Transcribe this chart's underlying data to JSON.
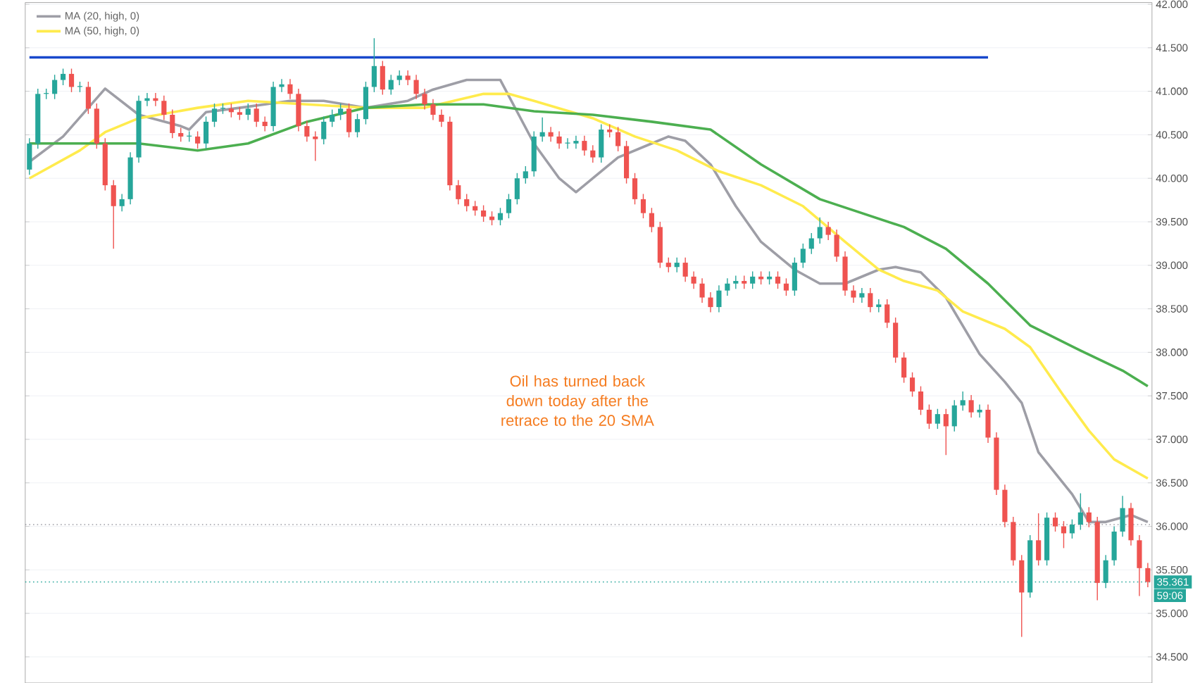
{
  "chart_data": {
    "type": "candlestick",
    "categories": [
      null,
      null,
      null,
      null,
      null,
      null,
      null,
      null,
      null,
      null,
      null,
      null,
      null,
      null,
      null,
      null,
      null,
      null,
      null,
      null,
      null,
      null,
      null,
      null,
      null,
      null,
      null,
      null,
      null,
      null,
      null,
      null,
      null,
      null,
      null,
      null,
      null,
      null,
      null,
      null,
      null,
      null,
      null,
      null,
      null,
      null,
      null,
      null,
      null,
      null,
      null,
      null,
      null,
      null,
      null,
      null,
      null,
      null,
      null,
      null,
      null,
      null,
      null,
      null,
      null,
      null,
      null,
      null,
      null,
      null,
      null,
      null,
      null,
      null,
      null,
      null,
      null,
      null,
      null,
      null,
      null,
      null,
      null,
      null,
      null,
      null,
      null,
      null,
      null,
      null,
      null,
      null,
      null,
      null,
      null,
      null,
      null,
      null,
      null,
      null,
      null,
      null,
      null,
      null,
      null,
      null,
      null,
      null,
      null,
      null,
      null,
      null,
      null,
      null,
      null,
      null,
      null,
      null,
      null,
      null,
      null,
      null,
      null,
      null,
      null,
      null,
      null,
      null,
      null,
      null,
      null,
      null,
      null,
      null
    ],
    "ohlc": [
      [
        40.1,
        40.46,
        40.04,
        40.4
      ],
      [
        40.4,
        41.03,
        40.34,
        40.97
      ],
      [
        40.97,
        41.03,
        40.91,
        40.97
      ],
      [
        40.97,
        41.19,
        40.91,
        41.13
      ],
      [
        41.13,
        41.26,
        41.07,
        41.2
      ],
      [
        41.2,
        41.26,
        40.99,
        41.05
      ],
      [
        41.05,
        41.11,
        40.99,
        41.05
      ],
      [
        41.05,
        41.11,
        40.74,
        40.8
      ],
      [
        40.8,
        40.86,
        40.34,
        40.4
      ],
      [
        40.4,
        40.46,
        39.86,
        39.92
      ],
      [
        39.92,
        39.98,
        39.19,
        39.68
      ],
      [
        39.68,
        39.82,
        39.62,
        39.76
      ],
      [
        39.76,
        40.3,
        39.7,
        40.24
      ],
      [
        40.24,
        40.95,
        40.18,
        40.89
      ],
      [
        40.89,
        40.98,
        40.83,
        40.92
      ],
      [
        40.92,
        40.98,
        40.83,
        40.89
      ],
      [
        40.89,
        40.95,
        40.67,
        40.73
      ],
      [
        40.73,
        40.79,
        40.46,
        40.52
      ],
      [
        40.52,
        40.58,
        40.42,
        40.48
      ],
      [
        40.48,
        40.54,
        40.42,
        40.48
      ],
      [
        40.48,
        40.54,
        40.34,
        40.4
      ],
      [
        40.4,
        40.71,
        40.34,
        40.65
      ],
      [
        40.65,
        40.86,
        40.59,
        40.8
      ],
      [
        40.8,
        40.86,
        40.74,
        40.8
      ],
      [
        40.8,
        40.86,
        40.7,
        40.76
      ],
      [
        40.76,
        40.82,
        40.67,
        40.73
      ],
      [
        40.73,
        40.86,
        40.67,
        40.8
      ],
      [
        40.8,
        40.86,
        40.59,
        40.65
      ],
      [
        40.65,
        40.71,
        40.54,
        40.6
      ],
      [
        40.6,
        41.11,
        40.54,
        41.05
      ],
      [
        41.05,
        41.14,
        40.99,
        41.08
      ],
      [
        41.08,
        41.14,
        40.91,
        40.97
      ],
      [
        40.97,
        41.03,
        40.54,
        40.6
      ],
      [
        40.6,
        40.66,
        40.42,
        40.48
      ],
      [
        40.48,
        40.54,
        40.2,
        40.45
      ],
      [
        40.45,
        40.71,
        40.39,
        40.65
      ],
      [
        40.65,
        40.79,
        40.59,
        40.73
      ],
      [
        40.73,
        40.86,
        40.67,
        40.8
      ],
      [
        40.8,
        40.86,
        40.47,
        40.53
      ],
      [
        40.53,
        40.74,
        40.47,
        40.68
      ],
      [
        40.68,
        41.11,
        40.62,
        41.05
      ],
      [
        41.05,
        41.61,
        40.99,
        41.29
      ],
      [
        41.29,
        41.35,
        40.96,
        41.02
      ],
      [
        41.02,
        41.19,
        40.96,
        41.13
      ],
      [
        41.13,
        41.24,
        41.07,
        41.18
      ],
      [
        41.18,
        41.24,
        41.07,
        41.13
      ],
      [
        41.13,
        41.19,
        40.91,
        40.97
      ],
      [
        40.97,
        41.03,
        40.79,
        40.85
      ],
      [
        40.85,
        40.91,
        40.67,
        40.73
      ],
      [
        40.73,
        40.79,
        40.59,
        40.65
      ],
      [
        40.65,
        40.71,
        39.86,
        39.92
      ],
      [
        39.92,
        39.98,
        39.7,
        39.76
      ],
      [
        39.76,
        39.82,
        39.62,
        39.68
      ],
      [
        39.68,
        39.74,
        39.57,
        39.63
      ],
      [
        39.63,
        39.69,
        39.5,
        39.56
      ],
      [
        39.56,
        39.62,
        39.46,
        39.52
      ],
      [
        39.52,
        39.66,
        39.46,
        39.6
      ],
      [
        39.6,
        39.82,
        39.54,
        39.76
      ],
      [
        39.76,
        40.06,
        39.7,
        40.0
      ],
      [
        40.0,
        40.14,
        39.94,
        40.08
      ],
      [
        40.08,
        40.54,
        40.02,
        40.48
      ],
      [
        40.48,
        40.7,
        40.42,
        40.53
      ],
      [
        40.53,
        40.59,
        40.42,
        40.48
      ],
      [
        40.48,
        40.54,
        40.34,
        40.4
      ],
      [
        40.4,
        40.46,
        40.34,
        40.4
      ],
      [
        40.4,
        40.49,
        40.34,
        40.43
      ],
      [
        40.43,
        40.49,
        40.26,
        40.32
      ],
      [
        40.32,
        40.38,
        40.18,
        40.24
      ],
      [
        40.24,
        40.62,
        40.18,
        40.56
      ],
      [
        40.56,
        40.62,
        40.47,
        40.53
      ],
      [
        40.53,
        40.59,
        40.31,
        40.37
      ],
      [
        40.37,
        40.43,
        39.94,
        40.0
      ],
      [
        40.0,
        40.06,
        39.7,
        39.76
      ],
      [
        39.76,
        39.82,
        39.54,
        39.6
      ],
      [
        39.6,
        39.66,
        39.38,
        39.44
      ],
      [
        39.44,
        39.5,
        38.97,
        39.03
      ],
      [
        39.03,
        39.09,
        38.92,
        38.98
      ],
      [
        38.98,
        39.09,
        38.92,
        39.03
      ],
      [
        39.03,
        39.09,
        38.81,
        38.87
      ],
      [
        38.87,
        38.93,
        38.73,
        38.79
      ],
      [
        38.79,
        38.85,
        38.57,
        38.63
      ],
      [
        38.63,
        38.69,
        38.46,
        38.52
      ],
      [
        38.52,
        38.77,
        38.46,
        38.71
      ],
      [
        38.71,
        38.85,
        38.65,
        38.79
      ],
      [
        38.79,
        38.88,
        38.73,
        38.82
      ],
      [
        38.82,
        38.88,
        38.73,
        38.79
      ],
      [
        38.79,
        38.93,
        38.73,
        38.87
      ],
      [
        38.87,
        38.93,
        38.78,
        38.84
      ],
      [
        38.84,
        38.93,
        38.78,
        38.87
      ],
      [
        38.87,
        38.93,
        38.73,
        38.79
      ],
      [
        38.79,
        38.85,
        38.65,
        38.71
      ],
      [
        38.71,
        39.09,
        38.65,
        39.03
      ],
      [
        39.03,
        39.25,
        38.97,
        39.19
      ],
      [
        39.19,
        39.37,
        39.13,
        39.31
      ],
      [
        39.31,
        39.55,
        39.25,
        39.44
      ],
      [
        39.44,
        39.5,
        39.29,
        39.35
      ],
      [
        39.35,
        39.41,
        39.04,
        39.1
      ],
      [
        39.1,
        39.16,
        38.65,
        38.71
      ],
      [
        38.71,
        38.77,
        38.57,
        38.63
      ],
      [
        38.63,
        38.74,
        38.57,
        38.68
      ],
      [
        38.68,
        38.74,
        38.46,
        38.52
      ],
      [
        38.52,
        38.61,
        38.46,
        38.55
      ],
      [
        38.55,
        38.61,
        38.28,
        38.34
      ],
      [
        38.34,
        38.4,
        37.88,
        37.94
      ],
      [
        37.94,
        38.0,
        37.65,
        37.71
      ],
      [
        37.71,
        37.77,
        37.49,
        37.55
      ],
      [
        37.55,
        37.61,
        37.28,
        37.34
      ],
      [
        37.34,
        37.4,
        37.12,
        37.18
      ],
      [
        37.18,
        37.35,
        37.12,
        37.29
      ],
      [
        37.29,
        37.35,
        36.82,
        37.15
      ],
      [
        37.15,
        37.45,
        37.09,
        37.39
      ],
      [
        37.39,
        37.55,
        37.33,
        37.45
      ],
      [
        37.45,
        37.51,
        37.25,
        37.31
      ],
      [
        37.31,
        37.4,
        37.25,
        37.34
      ],
      [
        37.34,
        37.4,
        36.96,
        37.02
      ],
      [
        37.02,
        37.08,
        36.36,
        36.42
      ],
      [
        36.42,
        36.48,
        35.99,
        36.05
      ],
      [
        36.05,
        36.11,
        35.55,
        35.61
      ],
      [
        35.61,
        35.67,
        34.73,
        35.24
      ],
      [
        35.24,
        35.9,
        35.18,
        35.84
      ],
      [
        35.84,
        36.15,
        35.55,
        35.61
      ],
      [
        35.61,
        36.16,
        35.55,
        36.1
      ],
      [
        36.1,
        36.16,
        35.94,
        36.0
      ],
      [
        36.0,
        36.06,
        35.75,
        35.92
      ],
      [
        35.92,
        36.08,
        35.86,
        36.02
      ],
      [
        36.02,
        36.38,
        35.96,
        36.16
      ],
      [
        36.16,
        36.22,
        35.99,
        36.05
      ],
      [
        36.05,
        36.11,
        35.15,
        35.35
      ],
      [
        35.35,
        35.67,
        35.29,
        35.61
      ],
      [
        35.61,
        36.0,
        35.55,
        35.94
      ],
      [
        35.94,
        36.35,
        35.88,
        36.21
      ],
      [
        36.21,
        36.27,
        35.78,
        35.84
      ],
      [
        35.84,
        35.9,
        35.2,
        35.52
      ],
      [
        35.52,
        35.58,
        35.3,
        35.361
      ]
    ],
    "series": [
      {
        "name": "MA (20, high, 0)",
        "type": "line",
        "color": "#9e9ea6",
        "values": [
          40.19,
          null,
          null,
          null,
          40.48,
          null,
          null,
          null,
          null,
          41.03,
          null,
          null,
          null,
          40.73,
          null,
          null,
          null,
          null,
          40.6,
          40.56,
          null,
          40.76,
          null,
          null,
          null,
          40.81,
          null,
          null,
          null,
          null,
          null,
          40.89,
          null,
          null,
          null,
          40.89,
          null,
          null,
          null,
          null,
          40.81,
          null,
          null,
          null,
          null,
          40.89,
          null,
          null,
          41.02,
          null,
          null,
          null,
          41.13,
          null,
          null,
          null,
          41.13,
          null,
          null,
          null,
          40.4,
          null,
          null,
          40.0,
          null,
          39.84,
          null,
          40.0,
          null,
          null,
          40.24,
          null,
          null,
          null,
          40.4,
          null,
          40.48,
          null,
          40.43,
          null,
          null,
          40.16,
          null,
          null,
          39.68,
          null,
          null,
          39.27,
          null,
          null,
          null,
          38.95,
          null,
          null,
          38.79,
          null,
          null,
          38.79,
          null,
          null,
          null,
          38.95,
          null,
          38.98,
          null,
          null,
          38.92,
          null,
          null,
          38.63,
          null,
          null,
          null,
          37.98,
          null,
          null,
          37.66,
          null,
          37.42,
          null,
          36.85,
          null,
          null,
          null,
          36.37,
          null,
          36.05,
          null,
          36.05,
          null,
          null,
          36.13,
          null,
          36.05
        ]
      },
      {
        "name": "MA (50, high, 0)",
        "type": "line",
        "color": "#ffeb4d",
        "values": [
          40.0,
          null,
          null,
          null,
          null,
          null,
          40.32,
          null,
          null,
          40.53,
          null,
          null,
          null,
          40.69,
          null,
          null,
          null,
          null,
          null,
          null,
          40.81,
          null,
          null,
          null,
          null,
          null,
          40.89,
          null,
          null,
          null,
          null,
          null,
          null,
          40.85,
          null,
          null,
          null,
          null,
          null,
          null,
          40.81,
          null,
          null,
          null,
          null,
          null,
          null,
          40.81,
          null,
          null,
          null,
          null,
          null,
          null,
          40.97,
          null,
          null,
          40.97,
          null,
          null,
          40.89,
          null,
          null,
          null,
          null,
          null,
          null,
          40.69,
          null,
          null,
          null,
          null,
          40.48,
          null,
          null,
          null,
          null,
          40.32,
          null,
          null,
          null,
          null,
          40.08,
          null,
          null,
          null,
          null,
          39.92,
          null,
          null,
          null,
          null,
          39.68,
          null,
          null,
          null,
          null,
          39.27,
          null,
          null,
          null,
          38.95,
          null,
          null,
          38.82,
          null,
          null,
          null,
          38.71,
          null,
          null,
          38.47,
          null,
          null,
          null,
          null,
          38.27,
          null,
          null,
          38.06,
          null,
          null,
          null,
          37.5,
          null,
          null,
          37.1,
          null,
          null,
          36.77,
          null,
          null,
          null,
          36.55
        ]
      },
      {
        "type": "line",
        "color": "#4caf50",
        "values": [
          40.4,
          null,
          null,
          null,
          null,
          null,
          40.4,
          null,
          null,
          null,
          null,
          null,
          null,
          40.4,
          null,
          null,
          null,
          null,
          null,
          null,
          40.32,
          null,
          null,
          null,
          null,
          null,
          40.4,
          null,
          null,
          null,
          null,
          null,
          null,
          40.65,
          null,
          null,
          null,
          null,
          null,
          null,
          40.81,
          null,
          null,
          null,
          null,
          null,
          null,
          40.85,
          null,
          null,
          null,
          null,
          null,
          null,
          40.85,
          null,
          null,
          null,
          null,
          null,
          40.77,
          null,
          null,
          null,
          null,
          null,
          null,
          40.73,
          null,
          null,
          null,
          null,
          null,
          null,
          40.65,
          null,
          null,
          null,
          null,
          null,
          null,
          40.56,
          null,
          null,
          null,
          null,
          null,
          40.16,
          null,
          null,
          null,
          null,
          null,
          null,
          39.76,
          null,
          null,
          null,
          null,
          39.6,
          null,
          null,
          null,
          null,
          39.44,
          null,
          null,
          null,
          null,
          39.19,
          null,
          null,
          null,
          null,
          38.79,
          null,
          null,
          null,
          null,
          38.31,
          null,
          null,
          null,
          null,
          null,
          38.02,
          null,
          null,
          null,
          null,
          37.79,
          null,
          null,
          37.61
        ]
      },
      {
        "type": "line",
        "color": "#1848cc",
        "values": [
          41.39,
          null,
          null,
          null,
          null,
          null,
          null,
          null,
          null,
          null,
          null,
          null,
          null,
          null,
          null,
          null,
          null,
          null,
          null,
          null,
          null,
          null,
          null,
          null,
          null,
          null,
          null,
          null,
          null,
          null,
          null,
          null,
          null,
          null,
          null,
          null,
          null,
          null,
          null,
          null,
          null,
          null,
          null,
          null,
          null,
          null,
          null,
          null,
          null,
          null,
          null,
          null,
          null,
          null,
          null,
          null,
          null,
          null,
          null,
          null,
          null,
          null,
          null,
          null,
          null,
          null,
          null,
          null,
          null,
          null,
          null,
          null,
          null,
          null,
          null,
          null,
          null,
          null,
          null,
          null,
          null,
          null,
          null,
          null,
          null,
          null,
          null,
          null,
          null,
          null,
          null,
          null,
          null,
          null,
          null,
          null,
          null,
          null,
          null,
          null,
          null,
          null,
          null,
          null,
          null,
          null,
          null,
          null,
          null,
          null,
          null,
          null,
          null,
          null,
          41.39,
          null,
          null,
          null,
          null,
          null,
          null,
          null,
          null,
          null,
          null,
          null,
          null,
          null,
          null,
          null,
          null,
          null,
          null,
          null
        ]
      }
    ],
    "ylim": [
      34.2,
      42.02
    ],
    "yticks": [
      {
        "value": 34.5,
        "label": "34.500"
      },
      {
        "value": 35.0,
        "label": "35.000"
      },
      {
        "value": 35.5,
        "label": "35.500"
      },
      {
        "value": 36.0,
        "label": "36.000"
      },
      {
        "value": 36.5,
        "label": "36.500"
      },
      {
        "value": 37.0,
        "label": "37.000"
      },
      {
        "value": 37.5,
        "label": "37.500"
      },
      {
        "value": 38.0,
        "label": "38.000"
      },
      {
        "value": 38.5,
        "label": "38.500"
      },
      {
        "value": 39.0,
        "label": "39.000"
      },
      {
        "value": 39.5,
        "label": "39.500"
      },
      {
        "value": 40.0,
        "label": "40.000"
      },
      {
        "value": 40.5,
        "label": "40.500"
      },
      {
        "value": 41.0,
        "label": "41.000"
      },
      {
        "value": 41.5,
        "label": "41.500"
      },
      {
        "value": 42.0,
        "label": "42.000"
      }
    ],
    "ref_lines": [
      {
        "axis": "y",
        "value": 35.361,
        "label": "35.361",
        "color": "#26a69a",
        "line_style": "dotted"
      },
      {
        "axis": "y",
        "value": 36.02,
        "color": "#9e9ea6",
        "line_style": "dotted"
      }
    ],
    "annotations": [
      "Oil has turned back down today after the retrace to the 20 SMA",
      "59:06"
    ],
    "grid": "y",
    "legend": "top left",
    "tick_labels": "y",
    "marker": "none",
    "line_style": "solid"
  }
}
